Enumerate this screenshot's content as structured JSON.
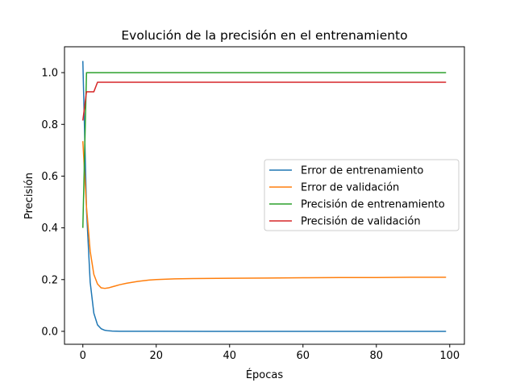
{
  "chart_data": {
    "type": "line",
    "title": "Evolución de la precisión en el entrenamiento",
    "xlabel": "Épocas",
    "ylabel": "Precisión",
    "xlim": [
      -5,
      104
    ],
    "ylim": [
      -0.05,
      1.1
    ],
    "xticks": [
      0,
      20,
      40,
      60,
      80,
      100
    ],
    "yticks": [
      0.0,
      0.2,
      0.4,
      0.6,
      0.8,
      1.0
    ],
    "xtick_labels": [
      "0",
      "20",
      "40",
      "60",
      "80",
      "100"
    ],
    "ytick_labels": [
      "0.0",
      "0.2",
      "0.4",
      "0.6",
      "0.8",
      "1.0"
    ],
    "grid": false,
    "legend_position": "center-right",
    "series": [
      {
        "name": "Error de entrenamiento",
        "color": "#1f77b4",
        "x": [
          0,
          1,
          2,
          3,
          4,
          5,
          6,
          7,
          8,
          9,
          10,
          15,
          20,
          40,
          60,
          80,
          99
        ],
        "y": [
          1.045,
          0.47,
          0.19,
          0.07,
          0.025,
          0.01,
          0.004,
          0.002,
          0.001,
          0.0005,
          0.0003,
          0.0002,
          0.0001,
          0.0,
          0.0,
          0.0,
          0.0
        ]
      },
      {
        "name": "Error de validación",
        "color": "#ff7f0e",
        "x": [
          0,
          1,
          2,
          3,
          4,
          5,
          6,
          7,
          8,
          9,
          10,
          12,
          15,
          18,
          20,
          25,
          30,
          40,
          50,
          60,
          70,
          80,
          90,
          99
        ],
        "y": [
          0.735,
          0.48,
          0.31,
          0.22,
          0.183,
          0.168,
          0.166,
          0.168,
          0.172,
          0.176,
          0.18,
          0.186,
          0.193,
          0.198,
          0.2,
          0.203,
          0.204,
          0.205,
          0.206,
          0.207,
          0.208,
          0.208,
          0.209,
          0.209
        ]
      },
      {
        "name": "Precisión de entrenamiento",
        "color": "#2ca02c",
        "x": [
          0,
          1,
          99
        ],
        "y": [
          0.4,
          1.0,
          1.0
        ]
      },
      {
        "name": "Precisión de validación",
        "color": "#d62728",
        "x": [
          0,
          1,
          2,
          3,
          4,
          99
        ],
        "y": [
          0.815,
          0.926,
          0.926,
          0.926,
          0.963,
          0.963
        ]
      }
    ]
  }
}
